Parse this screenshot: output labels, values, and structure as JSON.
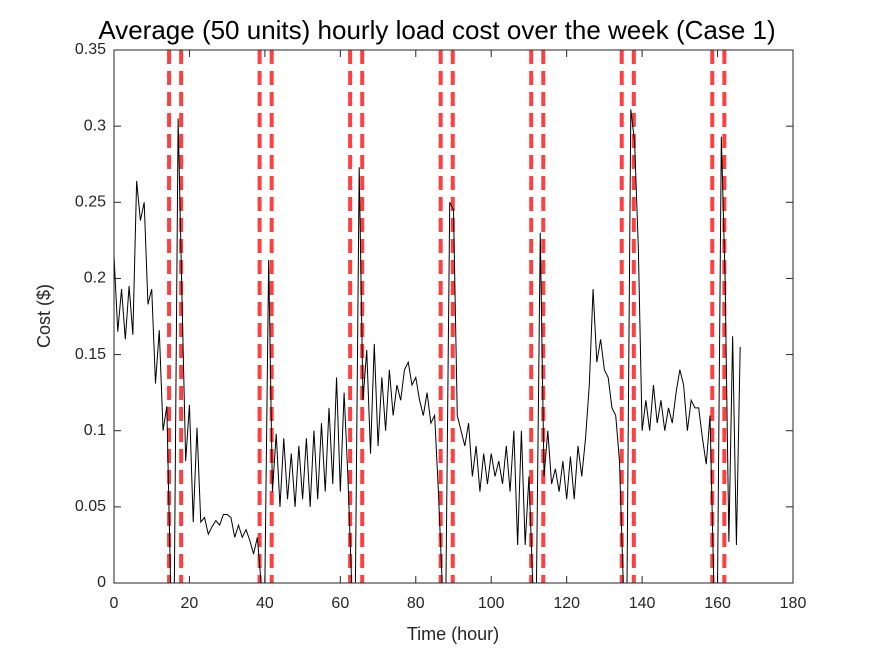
{
  "chart_data": {
    "type": "line",
    "title": "Average (50 units) hourly load cost over the week (Case 1)",
    "x_label": "Time (hour)",
    "y_label": "Cost ($)",
    "xlim": [
      0,
      180
    ],
    "xticks": [
      0,
      20,
      40,
      60,
      80,
      100,
      120,
      140,
      160,
      180
    ],
    "ylim": [
      0,
      0.35
    ],
    "yticks": [
      0,
      0.05,
      0.1,
      0.15,
      0.2,
      0.25,
      0.3,
      0.35
    ],
    "grid": false,
    "vlines": {
      "color": "#ff4040",
      "values": [
        14.6,
        17.8,
        38.6,
        41.8,
        62.6,
        65.8,
        86.6,
        89.8,
        110.6,
        113.8,
        134.6,
        137.8,
        158.6,
        161.8
      ]
    },
    "series": [
      {
        "color": "#000000",
        "x": [
          0,
          1,
          2,
          3,
          4,
          5,
          6,
          7,
          8,
          9,
          10,
          11,
          12,
          13,
          14,
          15,
          16,
          17,
          18,
          19,
          20,
          21,
          22,
          23,
          24,
          25,
          26,
          27,
          28,
          29,
          30,
          31,
          32,
          33,
          34,
          35,
          36,
          37,
          38,
          39,
          40,
          41,
          42,
          43,
          44,
          45,
          46,
          47,
          48,
          49,
          50,
          51,
          52,
          53,
          54,
          55,
          56,
          57,
          58,
          59,
          60,
          61,
          62,
          63,
          64,
          65,
          66,
          67,
          68,
          69,
          70,
          71,
          72,
          73,
          74,
          75,
          76,
          77,
          78,
          79,
          80,
          81,
          82,
          83,
          84,
          85,
          86,
          87,
          88,
          89,
          90,
          91,
          92,
          93,
          94,
          95,
          96,
          97,
          98,
          99,
          100,
          101,
          102,
          103,
          104,
          105,
          106,
          107,
          108,
          109,
          110,
          111,
          112,
          113,
          114,
          115,
          116,
          117,
          118,
          119,
          120,
          121,
          122,
          123,
          124,
          125,
          126,
          127,
          128,
          129,
          130,
          131,
          132,
          133,
          134,
          135,
          136,
          137,
          138,
          139,
          140,
          141,
          142,
          143,
          144,
          145,
          146,
          147,
          148,
          149,
          150,
          151,
          152,
          153,
          154,
          155,
          156,
          157,
          158,
          159,
          160,
          161,
          162,
          163,
          164,
          165,
          166
        ],
        "values": [
          0.215,
          0.165,
          0.193,
          0.16,
          0.195,
          0.163,
          0.264,
          0.238,
          0.25,
          0.183,
          0.193,
          0.131,
          0.166,
          0.1,
          0.116,
          0,
          0,
          0.305,
          0.19,
          0.08,
          0.117,
          0.04,
          0.102,
          0.04,
          0.043,
          0.032,
          0.037,
          0.041,
          0.038,
          0.045,
          0.045,
          0.043,
          0.03,
          0.038,
          0.03,
          0.035,
          0.028,
          0.019,
          0.03,
          0,
          0,
          0.212,
          0.06,
          0.098,
          0.05,
          0.095,
          0.055,
          0.085,
          0.05,
          0.09,
          0.055,
          0.095,
          0.05,
          0.1,
          0.055,
          0.105,
          0.06,
          0.115,
          0.065,
          0.135,
          0.06,
          0.125,
          0.07,
          0,
          0,
          0.273,
          0.12,
          0.153,
          0.085,
          0.157,
          0.09,
          0.135,
          0.1,
          0.14,
          0.11,
          0.13,
          0.12,
          0.14,
          0.145,
          0.13,
          0.135,
          0.12,
          0.11,
          0.125,
          0.105,
          0.11,
          0.06,
          0,
          0,
          0.25,
          0.245,
          0.11,
          0.1,
          0.09,
          0.105,
          0.07,
          0.09,
          0.06,
          0.085,
          0.065,
          0.085,
          0.07,
          0.08,
          0.065,
          0.09,
          0.06,
          0.1,
          0.025,
          0.1,
          0.025,
          0.07,
          0,
          0,
          0.23,
          0.07,
          0.1,
          0.065,
          0.075,
          0.06,
          0.08,
          0.055,
          0.083,
          0.055,
          0.09,
          0.07,
          0.095,
          0.13,
          0.193,
          0.145,
          0.16,
          0.14,
          0.135,
          0.115,
          0.11,
          0.08,
          0,
          0,
          0.311,
          0.29,
          0.22,
          0.1,
          0.12,
          0.1,
          0.13,
          0.105,
          0.12,
          0.1,
          0.115,
          0.105,
          0.125,
          0.14,
          0.13,
          0.1,
          0.12,
          0.115,
          0.115,
          0.095,
          0.078,
          0.11,
          0,
          0,
          0.293,
          0.2,
          0.027,
          0.162,
          0.025,
          0.155
        ]
      }
    ]
  }
}
